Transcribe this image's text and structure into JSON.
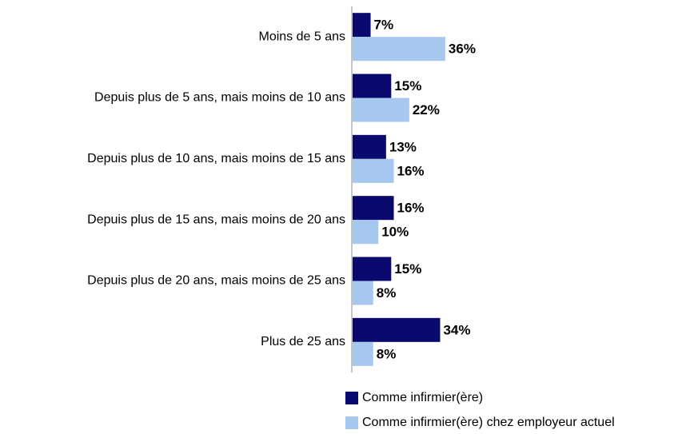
{
  "chart_data": {
    "type": "bar",
    "orientation": "horizontal",
    "categories": [
      "Moins de 5 ans",
      "Depuis plus de 5 ans, mais moins de 10 ans",
      "Depuis plus de 10 ans, mais moins de 15 ans",
      "Depuis plus de 15 ans, mais moins de 20 ans",
      "Depuis plus de 20 ans, mais moins de 25 ans",
      "Plus de 25 ans"
    ],
    "series": [
      {
        "name": "Comme infirmier(ère)",
        "color": "#0a0a6e",
        "values": [
          7,
          15,
          13,
          16,
          15,
          34
        ],
        "value_labels": [
          "7%",
          "15%",
          "13%",
          "16%",
          "15%",
          "34%"
        ]
      },
      {
        "name": "Comme infirmier(ère) chez employeur actuel",
        "color": "#a6c8ee",
        "values": [
          36,
          22,
          16,
          10,
          8,
          8
        ],
        "value_labels": [
          "36%",
          "22%",
          "16%",
          "10%",
          "8%",
          "8%"
        ]
      }
    ],
    "legend": "bottom"
  }
}
